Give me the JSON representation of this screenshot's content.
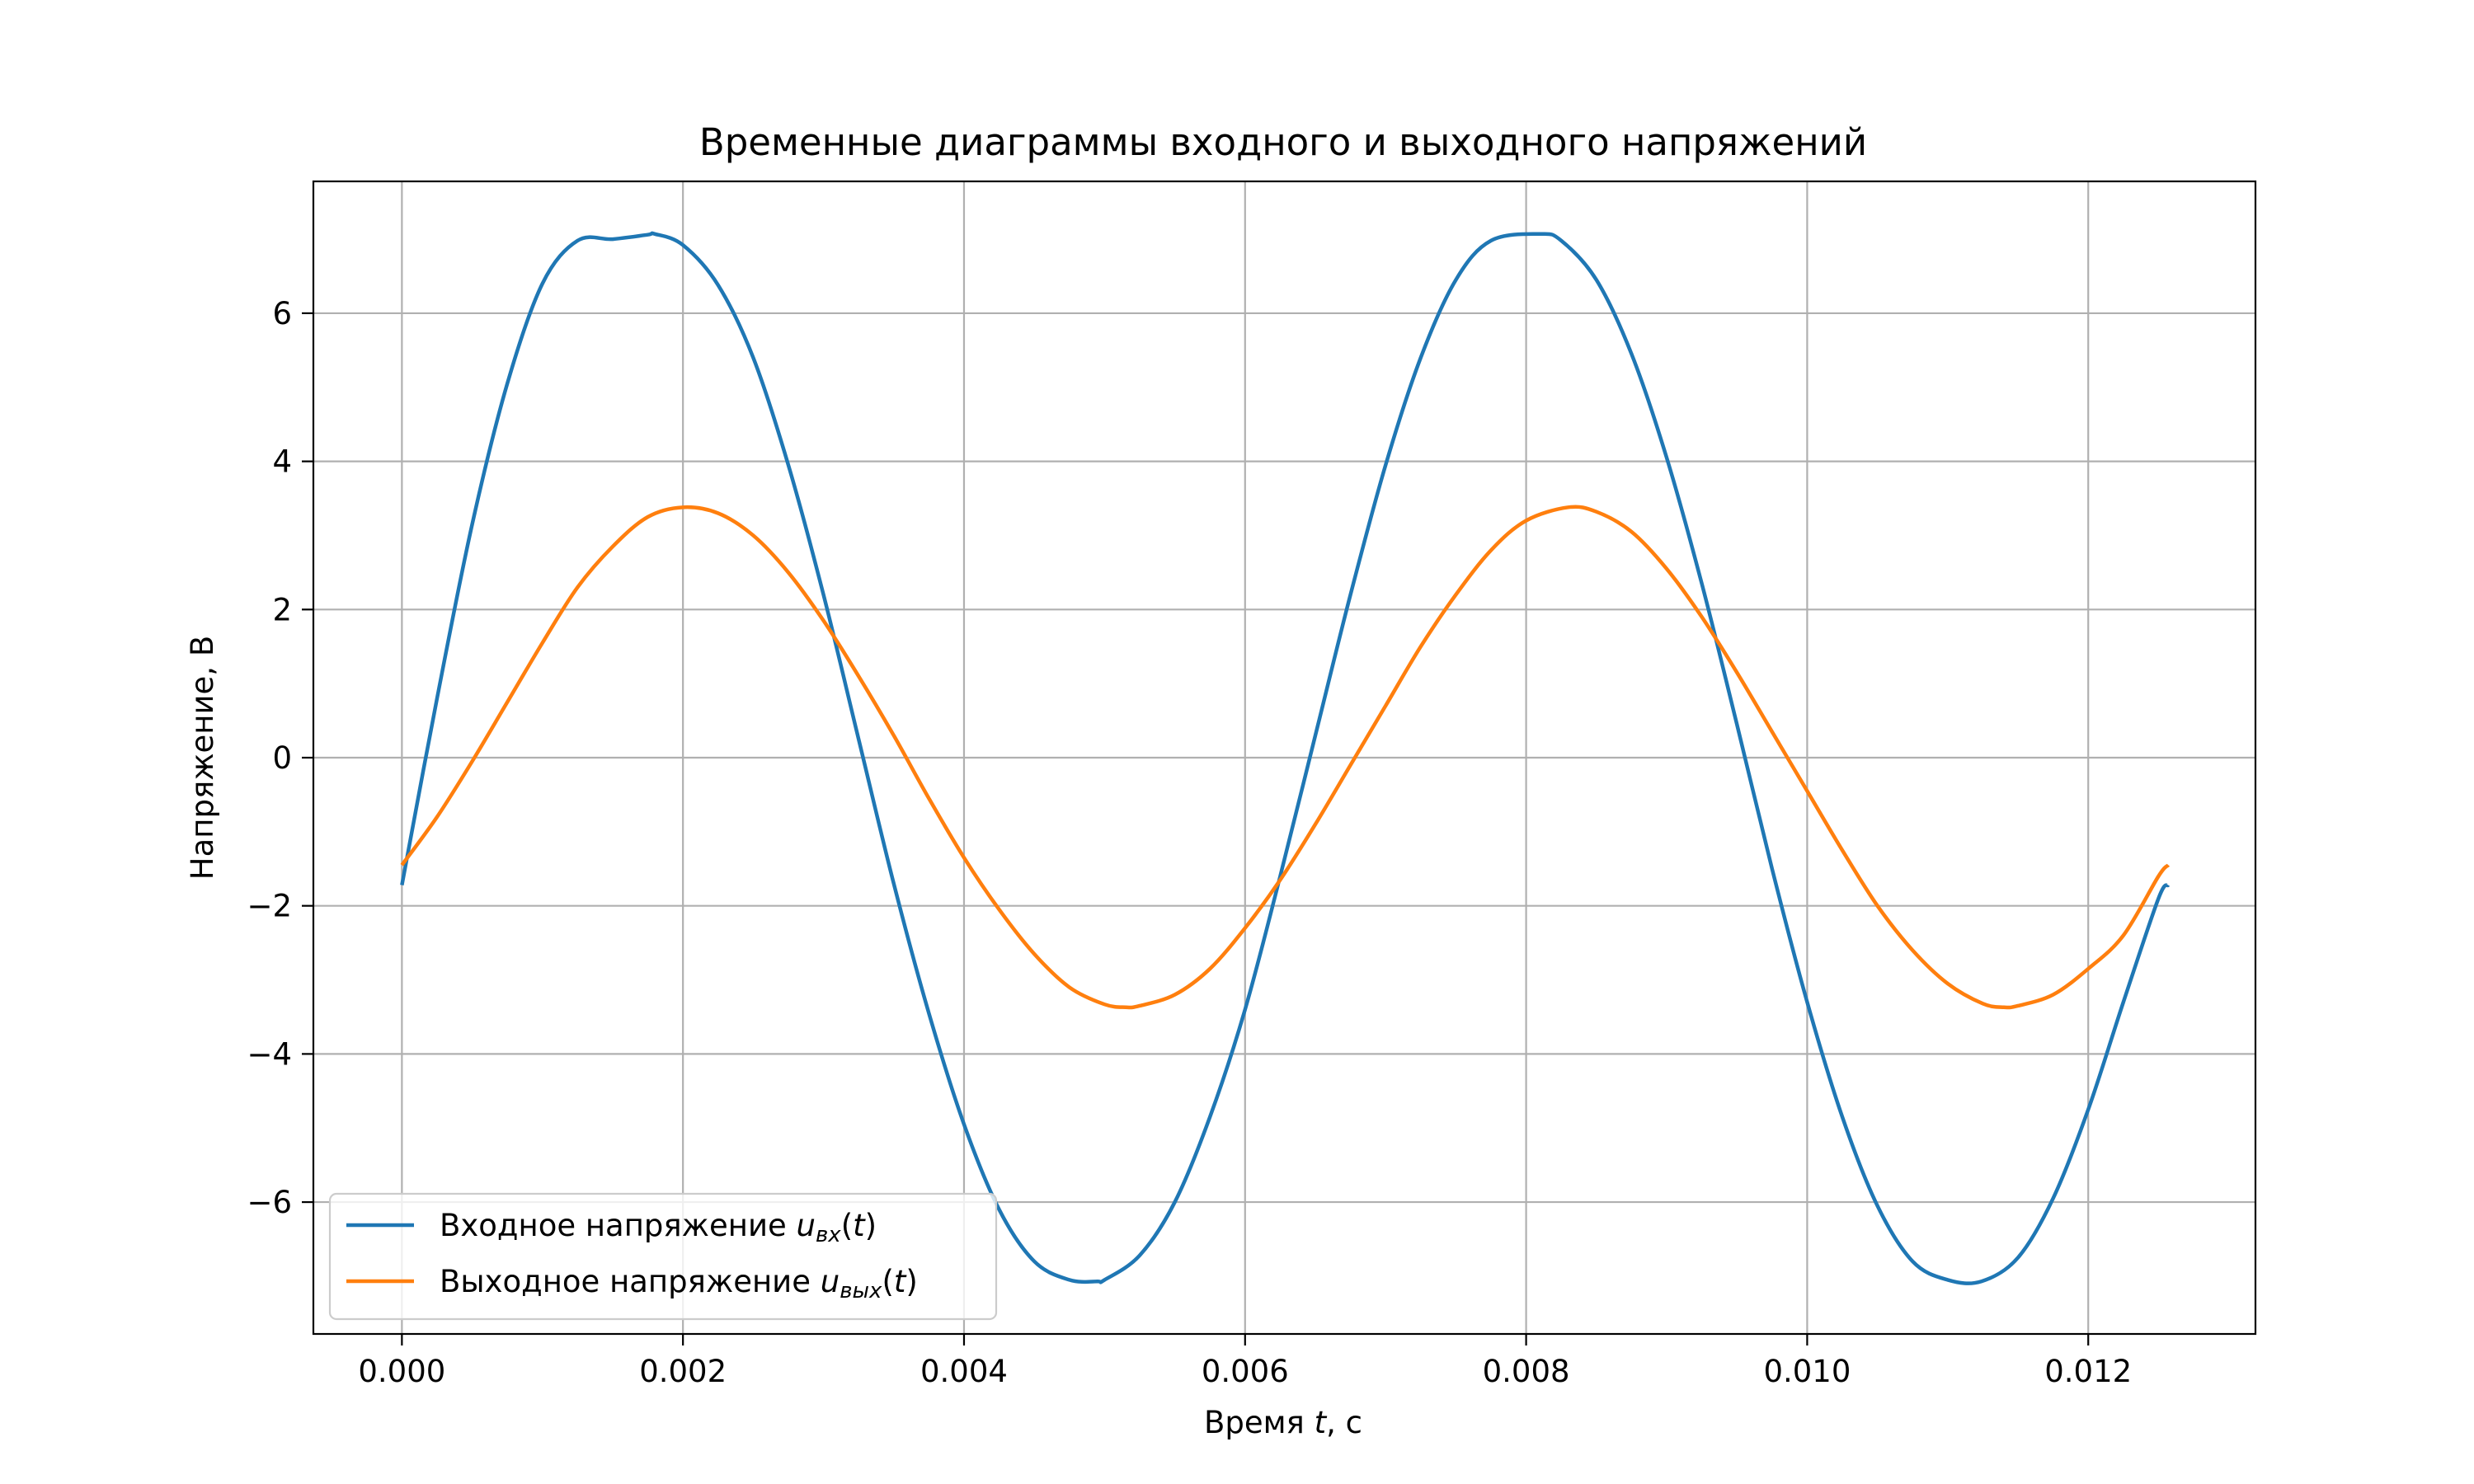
{
  "chart_data": {
    "type": "line",
    "title": "Временные диаграммы входного и выходного напряжений",
    "xlabel_main": "Время ",
    "xlabel_var": "t",
    "xlabel_unit": ", с",
    "ylabel": "Напряжение, В",
    "xlim": [
      -0.00063,
      0.01319
    ],
    "ylim": [
      -7.78,
      7.78
    ],
    "x_ticks": [
      0.0,
      0.002,
      0.004,
      0.006,
      0.008,
      0.01,
      0.012
    ],
    "x_tick_labels": [
      "0.000",
      "0.002",
      "0.004",
      "0.006",
      "0.008",
      "0.010",
      "0.012"
    ],
    "y_ticks": [
      -6,
      -4,
      -2,
      0,
      2,
      4,
      6
    ],
    "y_tick_labels": [
      "−6",
      "−4",
      "−2",
      "0",
      "2",
      "4",
      "6"
    ],
    "grid": true,
    "legend_position": "lower-left",
    "x_range": [
      0.0,
      0.01257
    ],
    "series": [
      {
        "name": "Входное напряжение",
        "name_sub": "вх",
        "color": "#1f77b4",
        "x": [
          0.0,
          0.00025,
          0.0005,
          0.00075,
          0.001,
          0.00125,
          0.0015,
          0.00175,
          0.0018,
          0.002,
          0.00225,
          0.0025,
          0.00275,
          0.003,
          0.00325,
          0.0035,
          0.00375,
          0.004,
          0.00425,
          0.0045,
          0.00475,
          0.00495,
          0.005,
          0.00525,
          0.0055,
          0.00575,
          0.006,
          0.00625,
          0.0065,
          0.00675,
          0.007,
          0.00725,
          0.0075,
          0.00775,
          0.0081,
          0.00825,
          0.0085,
          0.00875,
          0.009,
          0.00925,
          0.0095,
          0.00975,
          0.01,
          0.01025,
          0.0105,
          0.01075,
          0.011,
          0.01124,
          0.0115,
          0.01175,
          0.012,
          0.01225,
          0.0125,
          0.01257
        ],
        "values": [
          -1.72,
          0.8,
          3.15,
          5.05,
          6.4,
          6.98,
          7.0,
          7.06,
          7.07,
          6.92,
          6.38,
          5.4,
          3.95,
          2.2,
          0.25,
          -1.7,
          -3.45,
          -4.95,
          -6.1,
          -6.8,
          -7.05,
          -7.07,
          -7.05,
          -6.72,
          -6.0,
          -4.85,
          -3.4,
          -1.6,
          0.3,
          2.2,
          3.95,
          5.4,
          6.45,
          6.98,
          7.07,
          6.98,
          6.45,
          5.45,
          4.05,
          2.35,
          0.45,
          -1.5,
          -3.3,
          -4.85,
          -6.05,
          -6.8,
          -7.05,
          -7.07,
          -6.75,
          -5.95,
          -4.75,
          -3.3,
          -1.9,
          -1.72
        ]
      },
      {
        "name": "Выходное напряжение",
        "name_sub": "вых",
        "color": "#ff7f0e",
        "x": [
          0.0,
          0.00025,
          0.0005,
          0.00075,
          0.001,
          0.00125,
          0.0015,
          0.00175,
          0.002,
          0.00225,
          0.0025,
          0.00275,
          0.003,
          0.00325,
          0.0035,
          0.00375,
          0.004,
          0.00425,
          0.0045,
          0.00475,
          0.005,
          0.00515,
          0.00525,
          0.0055,
          0.00575,
          0.006,
          0.00625,
          0.0065,
          0.00675,
          0.007,
          0.00725,
          0.0075,
          0.00775,
          0.008,
          0.0083,
          0.0085,
          0.00875,
          0.009,
          0.00925,
          0.0095,
          0.00975,
          0.01,
          0.01025,
          0.0105,
          0.01075,
          0.011,
          0.01125,
          0.0114,
          0.0115,
          0.01175,
          0.012,
          0.01225,
          0.0125,
          0.01257
        ],
        "values": [
          -1.45,
          -0.8,
          -0.05,
          0.75,
          1.55,
          2.3,
          2.85,
          3.25,
          3.38,
          3.3,
          3.0,
          2.5,
          1.85,
          1.1,
          0.3,
          -0.55,
          -1.35,
          -2.05,
          -2.65,
          -3.1,
          -3.33,
          -3.37,
          -3.35,
          -3.2,
          -2.85,
          -2.3,
          -1.65,
          -0.9,
          -0.1,
          0.7,
          1.5,
          2.2,
          2.8,
          3.2,
          3.38,
          3.32,
          3.05,
          2.55,
          1.9,
          1.15,
          0.35,
          -0.45,
          -1.25,
          -2.0,
          -2.6,
          -3.05,
          -3.32,
          -3.37,
          -3.35,
          -3.2,
          -2.85,
          -2.4,
          -1.6,
          -1.45
        ]
      }
    ]
  }
}
